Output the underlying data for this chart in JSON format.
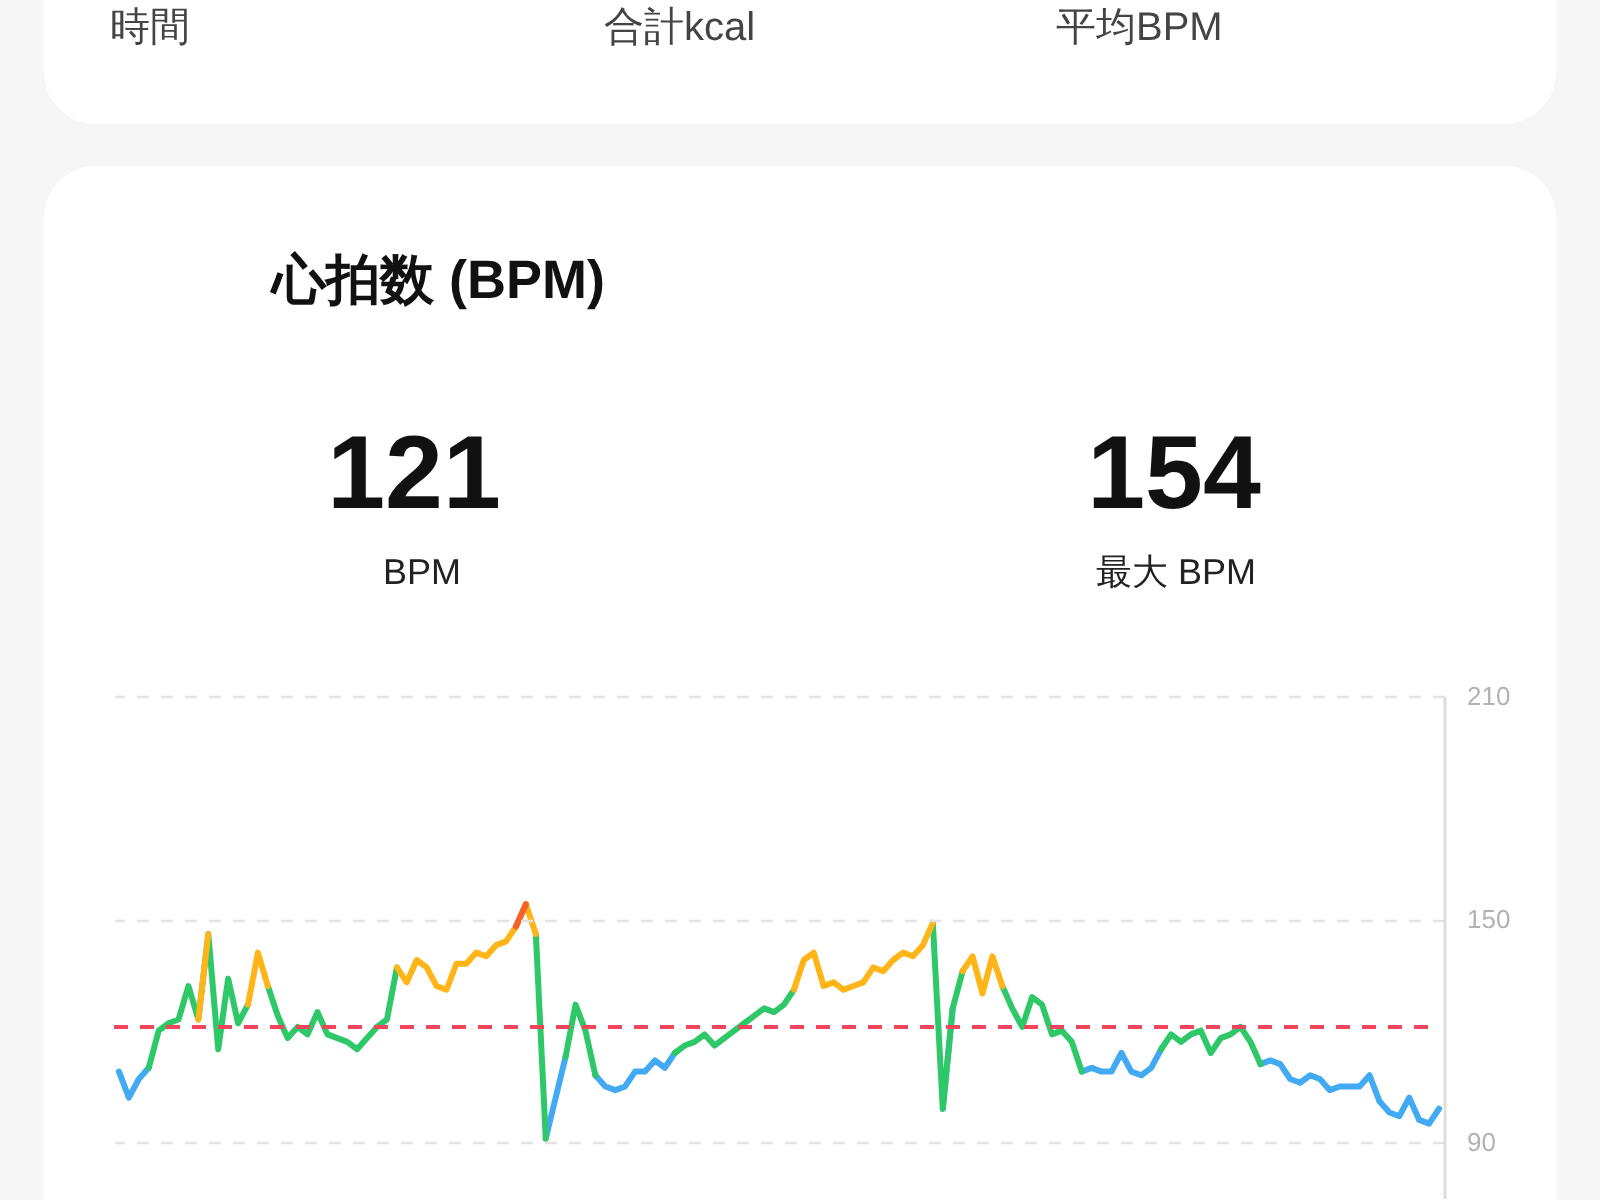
{
  "chart_data": {
    "type": "line",
    "title": "心拍数 (BPM)",
    "annotations": [
      "時間",
      "合計kcal",
      "平均BPM",
      "121",
      "BPM",
      "154",
      "最大 BPM"
    ],
    "categories": [
      null,
      null,
      null,
      null,
      null,
      null,
      null,
      null,
      null,
      null,
      null,
      null,
      null,
      null,
      null,
      null,
      null,
      null,
      null,
      null,
      null,
      null,
      null,
      null,
      null,
      null,
      null,
      null,
      null,
      null,
      null,
      null,
      null,
      null,
      null,
      null,
      null,
      null,
      null,
      null,
      null,
      null,
      null,
      null,
      null,
      null,
      null,
      null,
      null,
      null,
      null,
      null,
      null,
      null,
      null,
      null,
      null,
      null,
      null,
      null,
      null,
      null,
      null,
      null,
      null,
      null,
      null,
      null,
      null,
      null,
      null,
      null,
      null,
      null,
      null,
      null,
      null,
      null,
      null,
      null,
      null,
      null,
      null,
      null,
      null,
      null,
      null,
      null,
      null,
      null,
      null,
      null,
      null,
      null,
      null,
      null,
      null,
      null,
      null,
      null,
      null,
      null,
      null,
      null,
      null,
      null,
      null,
      null,
      null,
      null,
      null,
      null,
      null,
      null,
      null,
      null,
      null,
      null,
      null,
      null,
      null,
      null,
      null,
      null,
      null,
      null,
      null,
      null,
      null,
      null,
      null,
      null,
      null,
      null
    ],
    "series": [
      {
        "color": "#42a9f3",
        "values": [
          109,
          102,
          107,
          110,
          null,
          null,
          null,
          null,
          null,
          null,
          null,
          null,
          null,
          null,
          null,
          null,
          null,
          null,
          null,
          null,
          null,
          null,
          null,
          null,
          null,
          null,
          null,
          null,
          null,
          null,
          null,
          null,
          null,
          null,
          null,
          null,
          null,
          null,
          null,
          null,
          null,
          null,
          null,
          91,
          102,
          113,
          null,
          null,
          108,
          105,
          104,
          105,
          109,
          109,
          112,
          110,
          114,
          null,
          null,
          null,
          null,
          null,
          null,
          null,
          null,
          null,
          null,
          null,
          null,
          null,
          null,
          null,
          null,
          null,
          null,
          null,
          null,
          null,
          null,
          null,
          null,
          null,
          null,
          99,
          126,
          null,
          null,
          null,
          null,
          null,
          null,
          null,
          null,
          null,
          null,
          null,
          null,
          109,
          110,
          109,
          109,
          114,
          109,
          108,
          110,
          115,
          null,
          null,
          null,
          null,
          null,
          null,
          null,
          null,
          null,
          111,
          112,
          111,
          107,
          106,
          108,
          107,
          104,
          105,
          105,
          105,
          108,
          101,
          98,
          97,
          102,
          96,
          95,
          99
        ]
      },
      {
        "color": "#2fc868",
        "values": [
          null,
          null,
          null,
          110,
          120,
          122,
          123,
          132,
          123,
          146,
          115,
          134,
          122,
          127,
          null,
          132,
          124,
          118,
          121,
          119,
          125,
          119,
          118,
          117,
          115,
          118,
          121,
          123,
          137,
          null,
          null,
          null,
          null,
          null,
          null,
          null,
          null,
          null,
          null,
          null,
          null,
          null,
          146,
          91,
          null,
          113,
          127,
          120,
          108,
          null,
          null,
          null,
          null,
          null,
          null,
          null,
          114,
          116,
          117,
          119,
          116,
          118,
          120,
          122,
          124,
          126,
          125,
          127,
          131,
          null,
          null,
          null,
          null,
          null,
          null,
          null,
          null,
          null,
          null,
          null,
          null,
          null,
          149,
          99,
          126,
          136,
          null,
          null,
          null,
          132,
          126,
          121,
          129,
          127,
          119,
          120,
          117,
          109,
          null,
          null,
          null,
          null,
          null,
          null,
          null,
          115,
          119,
          117,
          119,
          120,
          114,
          118,
          119,
          121,
          117,
          111,
          null,
          null,
          null,
          null,
          null,
          null,
          null,
          null,
          null,
          null,
          null,
          null,
          null,
          null,
          null,
          null,
          null,
          null
        ]
      },
      {
        "color": "#ffb417",
        "values": [
          null,
          null,
          null,
          null,
          null,
          null,
          null,
          null,
          123,
          146,
          null,
          null,
          null,
          127,
          141,
          132,
          null,
          null,
          null,
          null,
          null,
          null,
          null,
          null,
          null,
          null,
          null,
          null,
          137,
          133,
          139,
          137,
          132,
          131,
          138,
          138,
          141,
          140,
          143,
          144,
          148,
          154,
          146,
          null,
          null,
          null,
          null,
          null,
          null,
          null,
          null,
          null,
          null,
          null,
          null,
          null,
          null,
          null,
          null,
          null,
          null,
          null,
          null,
          null,
          null,
          null,
          null,
          null,
          131,
          139,
          141,
          132,
          133,
          131,
          132,
          133,
          137,
          136,
          139,
          141,
          140,
          143,
          149,
          null,
          null,
          136,
          140,
          130,
          140,
          132,
          null,
          null,
          null,
          null,
          null,
          null,
          null,
          null,
          null,
          null,
          null,
          null,
          null,
          null,
          null,
          null,
          null,
          null,
          null,
          null,
          null,
          null,
          null,
          null,
          null,
          null,
          null,
          null,
          null,
          null,
          null,
          null,
          null,
          null,
          null,
          null,
          null,
          null,
          null,
          null,
          null,
          null,
          null,
          null
        ]
      },
      {
        "color": "#f4612b",
        "values": [
          null,
          null,
          null,
          null,
          null,
          null,
          null,
          null,
          null,
          null,
          null,
          null,
          null,
          null,
          null,
          null,
          null,
          null,
          null,
          null,
          null,
          null,
          null,
          null,
          null,
          null,
          null,
          null,
          null,
          null,
          null,
          null,
          null,
          null,
          null,
          null,
          null,
          null,
          null,
          null,
          148,
          154,
          null,
          null,
          null,
          null,
          null,
          null,
          null,
          null,
          null,
          null,
          null,
          null,
          null,
          null,
          null,
          null,
          null,
          null,
          null,
          null,
          null,
          null,
          null,
          null,
          null,
          null,
          null,
          null,
          null,
          null,
          null,
          null,
          null,
          null,
          null,
          null,
          null,
          null,
          null,
          null,
          null,
          null,
          null,
          null,
          null,
          null,
          null,
          null,
          null,
          null,
          null,
          null,
          null,
          null,
          null,
          null,
          null,
          null,
          null,
          null,
          null,
          null,
          null,
          null,
          null,
          null,
          null,
          null,
          null,
          null,
          null,
          null,
          null,
          null,
          null,
          null,
          null,
          null,
          null,
          null,
          null,
          null,
          null,
          null,
          null,
          null,
          null,
          null,
          null,
          null,
          null,
          null
        ]
      }
    ],
    "ylim": [
      75,
      210
    ],
    "yticks": [
      90,
      150,
      210
    ],
    "grid": "y",
    "tick_labels": "y",
    "ref_lines": [
      {
        "axis": "y",
        "value": 121,
        "color": "#f2445a",
        "line_style": "dashed"
      }
    ]
  }
}
